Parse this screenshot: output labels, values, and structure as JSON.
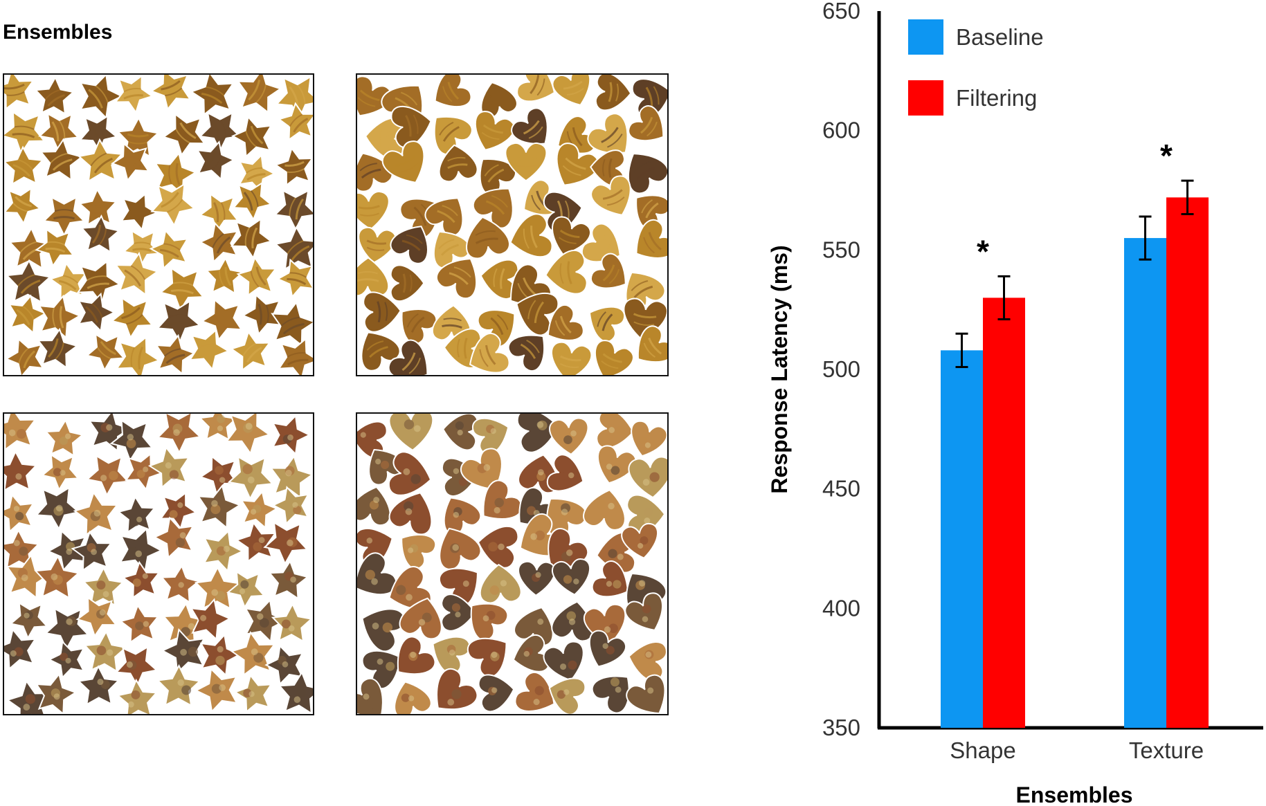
{
  "figure": {
    "panel_title": "Ensembles",
    "stimuli": [
      {
        "shape": "star",
        "texture": "wood",
        "palette": [
          "#b9862a",
          "#8a5a1e",
          "#c99a3a",
          "#6b4a2a",
          "#d4a74a",
          "#a36d26"
        ]
      },
      {
        "shape": "heart",
        "texture": "wood",
        "palette": [
          "#b9862a",
          "#8a5a1e",
          "#c99a3a",
          "#5e3f26",
          "#d4a74a",
          "#a36d26"
        ]
      },
      {
        "shape": "star",
        "texture": "stone",
        "palette": [
          "#a86a3a",
          "#7a5a3a",
          "#c08a4a",
          "#5a4636",
          "#b99a5a",
          "#8c4e2e"
        ]
      },
      {
        "shape": "heart",
        "texture": "stone",
        "palette": [
          "#a86a3a",
          "#7a5a3a",
          "#c08a4a",
          "#5a4636",
          "#b99a5a",
          "#8c4e2e"
        ]
      }
    ]
  },
  "chart_data": {
    "type": "bar",
    "categories": [
      "Shape",
      "Texture"
    ],
    "series": [
      {
        "name": "Baseline",
        "color": "#0d96f2",
        "values": [
          508,
          555
        ],
        "errors": [
          7,
          9
        ]
      },
      {
        "name": "Filtering",
        "color": "#ff0000",
        "values": [
          530,
          572
        ],
        "errors": [
          9,
          7
        ]
      }
    ],
    "significance": [
      "*",
      "*"
    ],
    "xlabel": "Ensembles",
    "ylabel": "Response Latency (ms)",
    "ylim": [
      350,
      650
    ],
    "yticks": [
      350,
      400,
      450,
      500,
      550,
      600,
      650
    ],
    "grid": false,
    "legend": "top-left"
  }
}
